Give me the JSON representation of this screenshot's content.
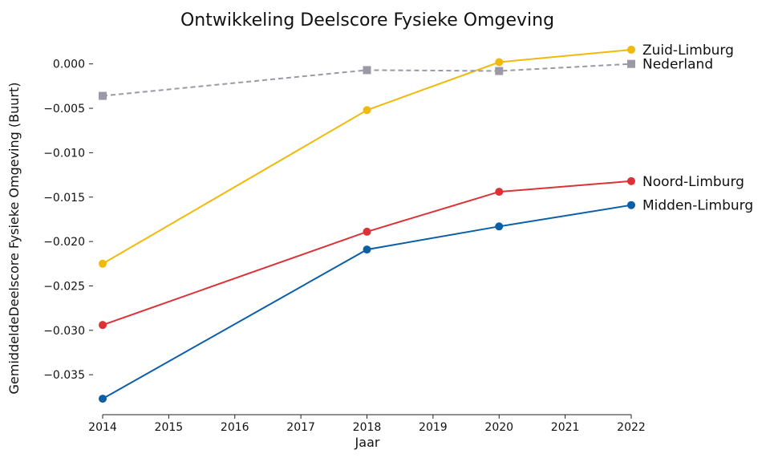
{
  "chart_data": {
    "type": "line",
    "title": "Ontwikkeling Deelscore Fysieke Omgeving",
    "xlabel": "Jaar",
    "ylabel": "GemiddeldeDeelscore Fysieke Omgeving (Buurt)",
    "xlim": [
      2014,
      2022
    ],
    "ylim": [
      -0.0395,
      0.0025
    ],
    "x_ticks": [
      2014,
      2015,
      2016,
      2017,
      2018,
      2019,
      2020,
      2021,
      2022
    ],
    "y_ticks": [
      0.0,
      -0.005,
      -0.01,
      -0.015,
      -0.02,
      -0.025,
      -0.03,
      -0.035
    ],
    "y_tick_labels": [
      "0.000",
      "−0.005",
      "−0.010",
      "−0.015",
      "−0.020",
      "−0.025",
      "−0.030",
      "−0.035"
    ],
    "grid": false,
    "legend": "end-of-line labels",
    "series": [
      {
        "name": "Zuid-Limburg",
        "color": "#f0b90b",
        "marker": "circle",
        "dash": false,
        "x": [
          2014,
          2018,
          2020,
          2022
        ],
        "y": [
          -0.0225,
          -0.0052,
          0.0002,
          0.0016
        ]
      },
      {
        "name": "Nederland",
        "color": "#9a99a6",
        "marker": "square",
        "dash": true,
        "x": [
          2014,
          2018,
          2020,
          2022
        ],
        "y": [
          -0.0036,
          -0.0007,
          -0.0008,
          0.0
        ]
      },
      {
        "name": "Noord-Limburg",
        "color": "#dc3236",
        "marker": "circle",
        "dash": false,
        "x": [
          2014,
          2018,
          2020,
          2022
        ],
        "y": [
          -0.0294,
          -0.0189,
          -0.0144,
          -0.0132
        ]
      },
      {
        "name": "Midden-Limburg",
        "color": "#0b5ea8",
        "marker": "circle",
        "dash": false,
        "x": [
          2014,
          2018,
          2020,
          2022
        ],
        "y": [
          -0.0377,
          -0.0209,
          -0.0183,
          -0.0159
        ]
      }
    ]
  }
}
